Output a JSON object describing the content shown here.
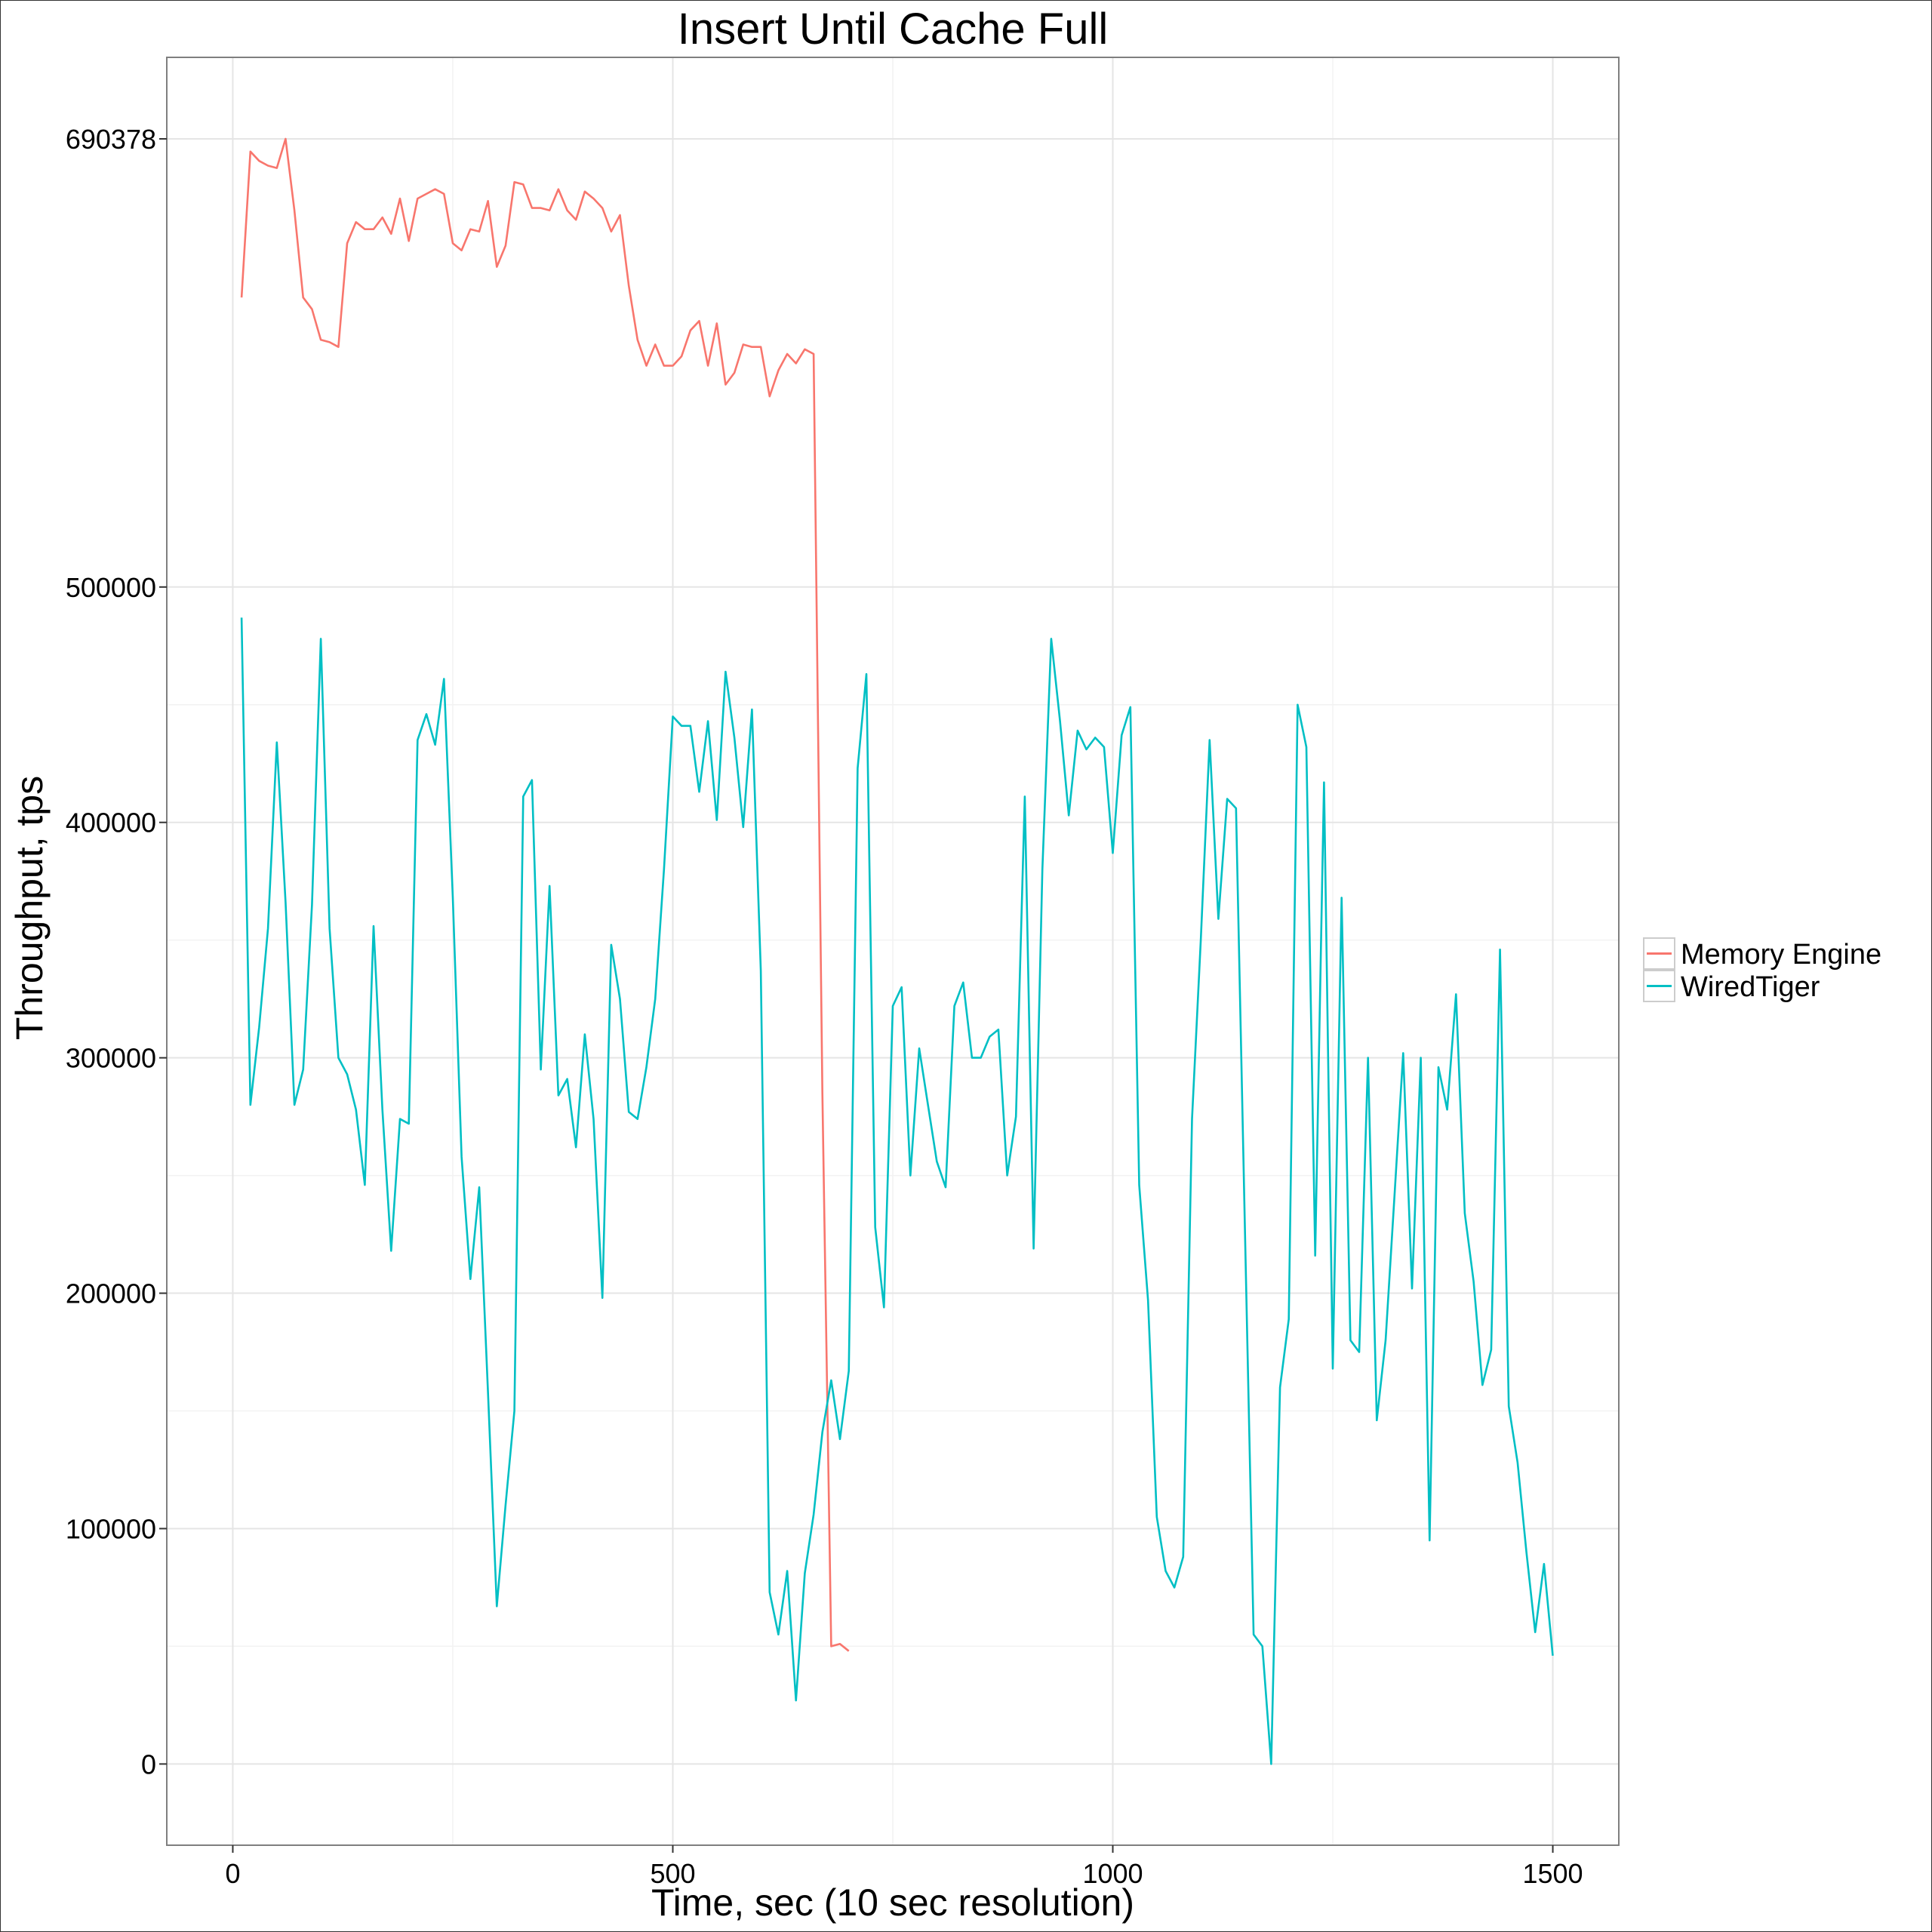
{
  "chart_data": {
    "type": "line",
    "title": "Insert Until Cache Full",
    "xlabel": "Time, sec (10 sec resolution)",
    "ylabel": "Throughput, tps",
    "xlim": [
      -75,
      1575
    ],
    "ylim": [
      -34500,
      725000
    ],
    "x_ticks": [
      0,
      500,
      1000,
      1500
    ],
    "y_ticks": [
      0,
      100000,
      200000,
      300000,
      400000,
      500000,
      690378
    ],
    "y_tick_labels": [
      "0",
      "100000",
      "200000",
      "300000",
      "400000",
      "500000",
      "690378"
    ],
    "grid": true,
    "legend_position": "right",
    "series": [
      {
        "name": "Memory Engine",
        "color": "#F8766D",
        "x": [
          10,
          20,
          30,
          40,
          50,
          60,
          70,
          80,
          90,
          100,
          110,
          120,
          130,
          140,
          150,
          160,
          170,
          180,
          190,
          200,
          210,
          220,
          230,
          240,
          250,
          260,
          270,
          280,
          290,
          300,
          310,
          320,
          330,
          340,
          350,
          360,
          370,
          380,
          390,
          400,
          410,
          420,
          430,
          440,
          450,
          460,
          470,
          480,
          490,
          500,
          510,
          520,
          530,
          540,
          550,
          560,
          570,
          580,
          590,
          600,
          610,
          620,
          630,
          640,
          650,
          660,
          670,
          680,
          690,
          700
        ],
        "values": [
          623000,
          685000,
          681000,
          679000,
          678000,
          690378,
          660000,
          623000,
          618000,
          605000,
          604000,
          602000,
          646000,
          655000,
          652000,
          652000,
          657000,
          650000,
          665000,
          647000,
          665000,
          667000,
          669000,
          667000,
          646000,
          643000,
          652000,
          651000,
          664000,
          636000,
          645000,
          672000,
          671000,
          661000,
          661000,
          660000,
          669000,
          660000,
          656000,
          668000,
          665000,
          661000,
          651000,
          658000,
          628000,
          605000,
          594000,
          603000,
          594000,
          594000,
          598000,
          609000,
          613000,
          594000,
          612000,
          586000,
          591000,
          603000,
          602000,
          602000,
          581000,
          592000,
          599000,
          595000,
          601000,
          599000,
          285000,
          50000,
          51000,
          48000
        ]
      },
      {
        "name": "WiredTiger",
        "color": "#00BFC4",
        "x": [
          10,
          20,
          30,
          40,
          50,
          60,
          70,
          80,
          90,
          100,
          110,
          120,
          130,
          140,
          150,
          160,
          170,
          180,
          190,
          200,
          210,
          220,
          230,
          240,
          250,
          260,
          270,
          280,
          290,
          300,
          310,
          320,
          330,
          340,
          350,
          360,
          370,
          380,
          390,
          400,
          410,
          420,
          430,
          440,
          450,
          460,
          470,
          480,
          490,
          500,
          510,
          520,
          530,
          540,
          550,
          560,
          570,
          580,
          590,
          600,
          610,
          620,
          630,
          640,
          650,
          660,
          670,
          680,
          690,
          700,
          710,
          720,
          730,
          740,
          750,
          760,
          770,
          780,
          790,
          800,
          810,
          820,
          830,
          840,
          850,
          860,
          870,
          880,
          890,
          900,
          910,
          920,
          930,
          940,
          950,
          960,
          970,
          980,
          990,
          1000,
          1010,
          1020,
          1030,
          1040,
          1050,
          1060,
          1070,
          1080,
          1090,
          1100,
          1110,
          1120,
          1130,
          1140,
          1150,
          1160,
          1170,
          1180,
          1190,
          1200,
          1210,
          1220,
          1230,
          1240,
          1250,
          1260,
          1270,
          1280,
          1290,
          1300,
          1310,
          1320,
          1330,
          1340,
          1350,
          1360,
          1370,
          1380,
          1390,
          1400,
          1410,
          1420,
          1430,
          1440,
          1450,
          1460,
          1470,
          1480,
          1490,
          1500
        ],
        "values": [
          487000,
          280000,
          313000,
          355000,
          434000,
          366000,
          280000,
          295000,
          365000,
          478000,
          355000,
          300000,
          293000,
          278000,
          246000,
          356000,
          278000,
          218000,
          274000,
          272000,
          435000,
          446000,
          433000,
          461000,
          368000,
          258000,
          206000,
          245000,
          158000,
          67000,
          110000,
          150000,
          411000,
          418000,
          295000,
          373000,
          284000,
          291000,
          262000,
          310000,
          274000,
          198000,
          348000,
          325000,
          277000,
          274000,
          296000,
          325000,
          380000,
          445000,
          441000,
          441000,
          413000,
          443000,
          401000,
          464000,
          436000,
          398000,
          448000,
          337000,
          73000,
          55000,
          82000,
          27000,
          81000,
          106000,
          141000,
          163000,
          138000,
          167000,
          423000,
          463000,
          228000,
          194000,
          322000,
          330000,
          250000,
          304000,
          280000,
          256000,
          245000,
          322000,
          332000,
          300000,
          300000,
          309000,
          312000,
          250000,
          275000,
          411000,
          219000,
          380000,
          478000,
          443000,
          403000,
          439000,
          431000,
          436000,
          432000,
          387000,
          437000,
          449000,
          246000,
          197000,
          105000,
          82000,
          75000,
          88000,
          274000,
          350000,
          435000,
          359000,
          410000,
          406000,
          230000,
          55000,
          50000,
          0,
          160000,
          189000,
          450000,
          432000,
          216000,
          417000,
          168000,
          368000,
          180000,
          175000,
          300000,
          146000,
          180000,
          241000,
          302000,
          202000,
          300000,
          95000,
          296000,
          278000,
          327000,
          234000,
          205000,
          161000,
          176000,
          346000,
          152000,
          128000,
          90000,
          56000,
          85000,
          46000
        ]
      }
    ]
  }
}
